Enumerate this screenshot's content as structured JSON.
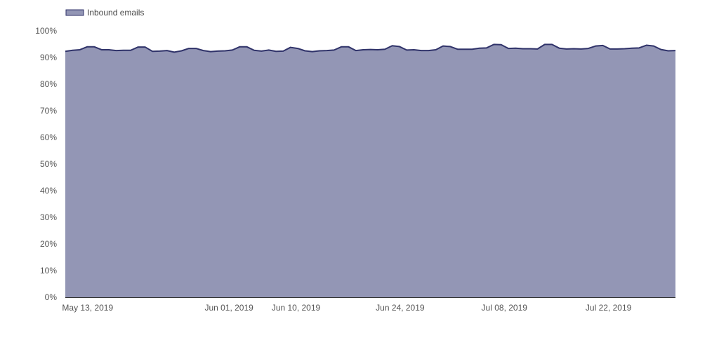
{
  "chart_data": {
    "type": "area",
    "x_start": "2019-05-10",
    "x_end": "2019-07-31",
    "series": [
      {
        "name": "Inbound emails",
        "color": "#9396b5",
        "line_color": "#2f3269",
        "values": [
          92.3,
          92.7,
          92.9,
          94.0,
          94.0,
          92.9,
          92.9,
          92.6,
          92.7,
          92.7,
          93.9,
          93.9,
          92.3,
          92.4,
          92.6,
          92.0,
          92.5,
          93.4,
          93.4,
          92.6,
          92.2,
          92.4,
          92.5,
          92.8,
          94.0,
          94.0,
          92.7,
          92.4,
          92.8,
          92.3,
          92.4,
          93.8,
          93.4,
          92.5,
          92.2,
          92.5,
          92.6,
          92.8,
          94.0,
          94.0,
          92.6,
          92.9,
          93.0,
          92.9,
          93.1,
          94.4,
          94.1,
          92.8,
          92.9,
          92.6,
          92.6,
          92.9,
          94.3,
          94.1,
          93.1,
          93.1,
          93.1,
          93.5,
          93.6,
          94.9,
          94.8,
          93.4,
          93.5,
          93.3,
          93.3,
          93.2,
          94.9,
          94.9,
          93.5,
          93.2,
          93.3,
          93.2,
          93.4,
          94.3,
          94.5,
          93.2,
          93.2,
          93.3,
          93.5,
          93.6,
          94.6,
          94.3,
          93.0,
          92.5,
          92.6
        ]
      }
    ],
    "ylim": [
      0,
      100
    ],
    "y_ticks": [
      "0%",
      "10%",
      "20%",
      "30%",
      "40%",
      "50%",
      "60%",
      "70%",
      "80%",
      "90%",
      "100%"
    ],
    "x_ticks": [
      {
        "date": "2019-05-13",
        "label": "May 13, 2019"
      },
      {
        "date": "2019-06-01",
        "label": "Jun 01, 2019"
      },
      {
        "date": "2019-06-10",
        "label": "Jun 10, 2019"
      },
      {
        "date": "2019-06-24",
        "label": "Jun 24, 2019"
      },
      {
        "date": "2019-07-08",
        "label": "Jul 08, 2019"
      },
      {
        "date": "2019-07-22",
        "label": "Jul 22, 2019"
      }
    ],
    "legend_position": "top-left",
    "grid": false
  }
}
